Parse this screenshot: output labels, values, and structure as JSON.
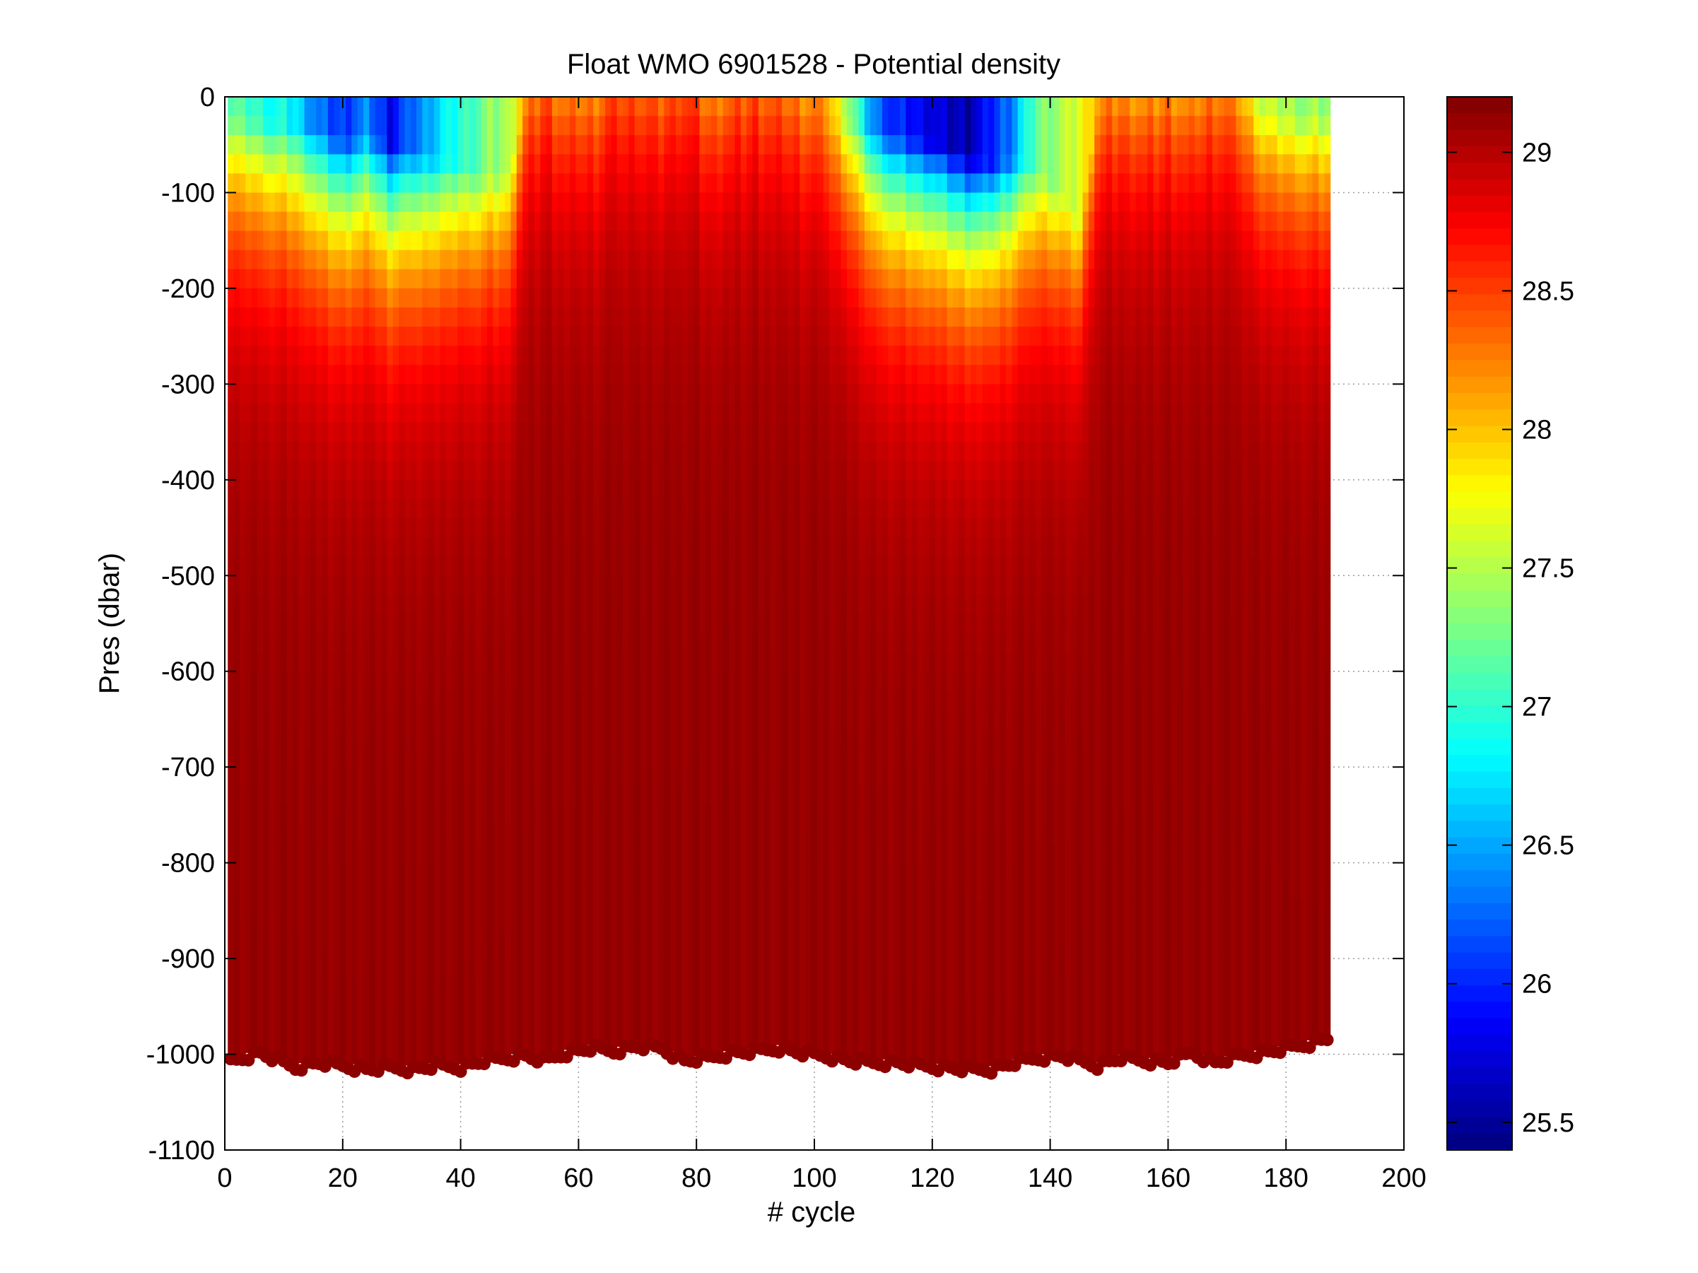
{
  "chart_data": {
    "type": "heatmap",
    "title": "Float WMO 6901528 - Potential density",
    "xlabel": "# cycle",
    "ylabel": "Pres (dbar)",
    "xlim": [
      0,
      200
    ],
    "ylim": [
      -1100,
      0
    ],
    "xticks": [
      0,
      20,
      40,
      60,
      80,
      100,
      120,
      140,
      160,
      180,
      200
    ],
    "yticks": [
      0,
      -100,
      -200,
      -300,
      -400,
      -500,
      -600,
      -700,
      -800,
      -900,
      -1000,
      -1100
    ],
    "grid": true,
    "colormap": "jet",
    "clim": [
      25.4,
      29.2
    ],
    "colorbar_ticks": [
      25.5,
      26,
      26.5,
      27,
      27.5,
      28,
      28.5,
      29
    ],
    "colorbar_location": "right",
    "cycles": [
      1,
      187
    ],
    "profiles": [
      {
        "cycle": 1,
        "surface": 27.2,
        "mld": 20,
        "bottom": -1003
      },
      {
        "cycle": 6,
        "surface": 27.0,
        "mld": 25,
        "bottom": -995
      },
      {
        "cycle": 12,
        "surface": 26.8,
        "mld": 30,
        "bottom": -1010
      },
      {
        "cycle": 16,
        "surface": 26.3,
        "mld": 35,
        "bottom": -1005
      },
      {
        "cycle": 20,
        "surface": 26.1,
        "mld": 45,
        "bottom": -1008
      },
      {
        "cycle": 24,
        "surface": 26.4,
        "mld": 40,
        "bottom": -1012
      },
      {
        "cycle": 28,
        "surface": 25.9,
        "mld": 50,
        "bottom": -1010
      },
      {
        "cycle": 32,
        "surface": 26.3,
        "mld": 55,
        "bottom": -1012
      },
      {
        "cycle": 36,
        "surface": 26.7,
        "mld": 65,
        "bottom": -1008
      },
      {
        "cycle": 40,
        "surface": 27.0,
        "mld": 70,
        "bottom": -1010
      },
      {
        "cycle": 44,
        "surface": 27.3,
        "mld": 80,
        "bottom": -1003
      },
      {
        "cycle": 48,
        "surface": 27.5,
        "mld": 80,
        "bottom": -1000
      },
      {
        "cycle": 51,
        "surface": 28.2,
        "mld": 10,
        "bottom": -998
      },
      {
        "cycle": 54,
        "surface": 28.5,
        "mld": 10,
        "bottom": -1003
      },
      {
        "cycle": 58,
        "surface": 28.3,
        "mld": 10,
        "bottom": -995
      },
      {
        "cycle": 62,
        "surface": 28.3,
        "mld": 10,
        "bottom": -990
      },
      {
        "cycle": 66,
        "surface": 28.5,
        "mld": 10,
        "bottom": -993
      },
      {
        "cycle": 70,
        "surface": 28.5,
        "mld": 10,
        "bottom": -988
      },
      {
        "cycle": 74,
        "surface": 28.4,
        "mld": 10,
        "bottom": -990
      },
      {
        "cycle": 78,
        "surface": 28.6,
        "mld": 10,
        "bottom": -1003
      },
      {
        "cycle": 82,
        "surface": 28.3,
        "mld": 10,
        "bottom": -1000
      },
      {
        "cycle": 86,
        "surface": 28.4,
        "mld": 10,
        "bottom": -995
      },
      {
        "cycle": 90,
        "surface": 28.5,
        "mld": 10,
        "bottom": -993
      },
      {
        "cycle": 94,
        "surface": 28.4,
        "mld": 10,
        "bottom": -990
      },
      {
        "cycle": 98,
        "surface": 28.3,
        "mld": 10,
        "bottom": -995
      },
      {
        "cycle": 102,
        "surface": 28.2,
        "mld": 20,
        "bottom": -998
      },
      {
        "cycle": 106,
        "surface": 27.4,
        "mld": 25,
        "bottom": -1003
      },
      {
        "cycle": 110,
        "surface": 26.4,
        "mld": 35,
        "bottom": -1005
      },
      {
        "cycle": 114,
        "surface": 26.0,
        "mld": 40,
        "bottom": -1005
      },
      {
        "cycle": 118,
        "surface": 25.9,
        "mld": 45,
        "bottom": -1008
      },
      {
        "cycle": 122,
        "surface": 25.7,
        "mld": 50,
        "bottom": -1010
      },
      {
        "cycle": 126,
        "surface": 25.6,
        "mld": 60,
        "bottom": -1012
      },
      {
        "cycle": 130,
        "surface": 26.0,
        "mld": 70,
        "bottom": -1012
      },
      {
        "cycle": 134,
        "surface": 26.5,
        "mld": 65,
        "bottom": -1005
      },
      {
        "cycle": 138,
        "surface": 27.3,
        "mld": 75,
        "bottom": -1000
      },
      {
        "cycle": 142,
        "surface": 27.5,
        "mld": 100,
        "bottom": -998
      },
      {
        "cycle": 145,
        "surface": 27.7,
        "mld": 130,
        "bottom": -1003
      },
      {
        "cycle": 148,
        "surface": 28.2,
        "mld": 15,
        "bottom": -1008
      },
      {
        "cycle": 152,
        "surface": 28.3,
        "mld": 10,
        "bottom": -1000
      },
      {
        "cycle": 156,
        "surface": 28.2,
        "mld": 10,
        "bottom": -1003
      },
      {
        "cycle": 160,
        "surface": 28.3,
        "mld": 10,
        "bottom": -1005
      },
      {
        "cycle": 164,
        "surface": 28.2,
        "mld": 10,
        "bottom": -995
      },
      {
        "cycle": 168,
        "surface": 28.4,
        "mld": 10,
        "bottom": -1005
      },
      {
        "cycle": 172,
        "surface": 28.2,
        "mld": 10,
        "bottom": -998
      },
      {
        "cycle": 176,
        "surface": 27.6,
        "mld": 15,
        "bottom": -995
      },
      {
        "cycle": 180,
        "surface": 27.5,
        "mld": 20,
        "bottom": -990
      },
      {
        "cycle": 184,
        "surface": 27.4,
        "mld": 20,
        "bottom": -985
      },
      {
        "cycle": 187,
        "surface": 27.4,
        "mld": 20,
        "bottom": -980
      }
    ],
    "deep_value": 29.15
  }
}
